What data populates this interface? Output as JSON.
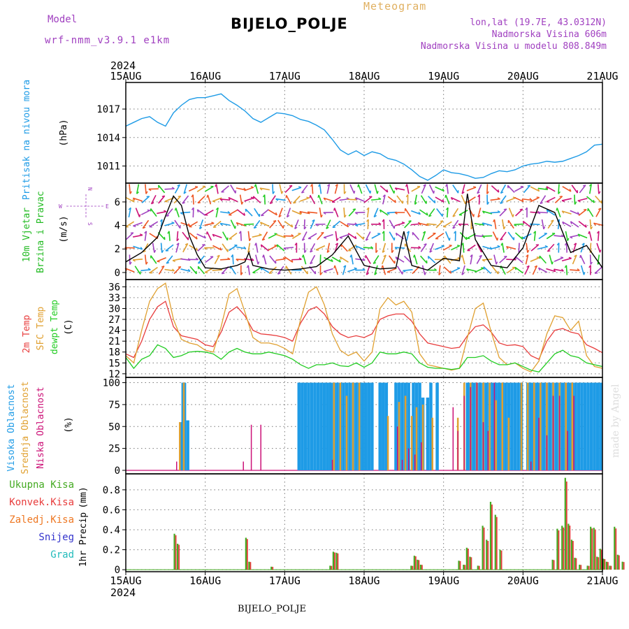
{
  "header": {
    "model_label": "Model",
    "model_name": "wrf-nmm_v3.9.1  e1km",
    "product": "Meteogram",
    "station": "BIJELO_POLJE",
    "lonlat": "lon,lat (19.7E, 43.0312N)",
    "elevation": "Nadmorska Visina 606m",
    "model_elevation": "Nadmorska Visina u modelu 808.849m",
    "footer_station": "BIJELO_POLJE",
    "credit": "made by Angel"
  },
  "time_axis": {
    "year": "2024",
    "dates": [
      "15AUG",
      "16AUG",
      "17AUG",
      "18AUG",
      "19AUG",
      "20AUG",
      "21AUG"
    ]
  },
  "colors": {
    "pressure": "#1e9be6",
    "wind_label": "#22bb22",
    "temp_2m": "#e83c3c",
    "temp_sfc": "#e0a030",
    "dewpoint": "#22cc22",
    "cloud_high": "#1e9be6",
    "cloud_mid": "#e0a030",
    "cloud_low": "#cc1177",
    "precip_total": "#44aa22",
    "precip_conv": "#e83c3c",
    "precip_frz": "#ee7722",
    "snow": "#3333cc",
    "hail": "#22bbbb",
    "header_purple": "#a040c0",
    "meteogram_orange": "#e0b060"
  },
  "chart_data": [
    {
      "type": "line",
      "name": "pressure",
      "ylabel_main": "Pritisak na nivou mora",
      "ylabel_unit": "(hPa)",
      "yticks": [
        1011,
        1014,
        1017
      ],
      "ylim": [
        1009.2,
        1019.8
      ],
      "grid": true,
      "x_days": [
        0,
        0.1,
        0.2,
        0.3,
        0.4,
        0.5,
        0.6,
        0.7,
        0.8,
        0.9,
        1,
        1.1,
        1.2,
        1.3,
        1.4,
        1.5,
        1.6,
        1.7,
        1.8,
        1.9,
        2,
        2.1,
        2.2,
        2.3,
        2.4,
        2.5,
        2.6,
        2.7,
        2.8,
        2.9,
        3,
        3.1,
        3.2,
        3.3,
        3.4,
        3.5,
        3.6,
        3.7,
        3.8,
        3.9,
        4,
        4.1,
        4.2,
        4.3,
        4.4,
        4.5,
        4.6,
        4.7,
        4.8,
        4.9,
        5,
        5.1,
        5.2,
        5.3,
        5.4,
        5.5,
        5.6,
        5.7,
        5.8,
        5.9,
        6
      ],
      "values": [
        1015.2,
        1015.6,
        1016.0,
        1016.2,
        1015.6,
        1015.2,
        1016.6,
        1017.4,
        1018.0,
        1018.2,
        1018.2,
        1018.4,
        1018.6,
        1017.9,
        1017.4,
        1016.8,
        1016.0,
        1015.6,
        1016.1,
        1016.6,
        1016.5,
        1016.3,
        1015.9,
        1015.7,
        1015.3,
        1014.8,
        1013.8,
        1012.7,
        1012.2,
        1012.6,
        1012.1,
        1012.5,
        1012.3,
        1011.8,
        1011.6,
        1011.2,
        1010.6,
        1009.9,
        1009.5,
        1010.0,
        1010.6,
        1010.3,
        1010.2,
        1010.0,
        1009.7,
        1009.8,
        1010.2,
        1010.5,
        1010.4,
        1010.6,
        1011.0,
        1011.2,
        1011.3,
        1011.5,
        1011.4,
        1011.5,
        1011.8,
        1012.1,
        1012.5,
        1013.2,
        1013.3
      ]
    },
    {
      "type": "scatter",
      "name": "wind",
      "ylabel_main": "10m Vjetar",
      "ylabel_sub": "Brzina i Pravac",
      "ylabel_unit": "(m/s)",
      "compass": {
        "w": "W",
        "e": "E",
        "n": "N",
        "s": "S"
      },
      "yticks": [
        0,
        2,
        4,
        6
      ],
      "ylim": [
        -0.6,
        7.6
      ],
      "grid": true,
      "x_days": [
        0,
        0.2,
        0.4,
        0.5,
        0.6,
        0.7,
        0.8,
        0.9,
        1.0,
        1.2,
        1.4,
        1.5,
        1.55,
        1.6,
        1.8,
        2.0,
        2.2,
        2.4,
        2.6,
        2.8,
        3.0,
        3.2,
        3.4,
        3.5,
        3.6,
        3.8,
        4.0,
        4.2,
        4.3,
        4.35,
        4.4,
        4.6,
        4.8,
        5.0,
        5.2,
        5.4,
        5.6,
        5.8,
        6.0
      ],
      "speed": [
        0.9,
        1.7,
        3.0,
        4.8,
        6.5,
        5.7,
        3.1,
        1.5,
        0.4,
        0.3,
        0.6,
        0.9,
        1.7,
        0.6,
        0.3,
        0.2,
        0.3,
        0.5,
        1.5,
        3.1,
        0.6,
        0.3,
        0.4,
        3.5,
        0.6,
        0.2,
        1.2,
        1.0,
        6.7,
        4.6,
        2.8,
        0.6,
        0.4,
        2.1,
        5.7,
        5.1,
        1.7,
        2.3,
        0.4
      ]
    },
    {
      "type": "line",
      "name": "temperature",
      "ylabel_lines": [
        "2m Temp",
        "SFC Temp",
        "dewpt Temp"
      ],
      "ylabel_unit": "(C)",
      "yticks": [
        12,
        15,
        18,
        21,
        24,
        27,
        30,
        33,
        36
      ],
      "ylim": [
        11,
        38
      ],
      "grid": true,
      "x_days": [
        0,
        0.1,
        0.2,
        0.3,
        0.4,
        0.5,
        0.6,
        0.7,
        0.8,
        0.9,
        1,
        1.1,
        1.2,
        1.3,
        1.4,
        1.5,
        1.6,
        1.7,
        1.8,
        1.9,
        2,
        2.1,
        2.2,
        2.3,
        2.4,
        2.5,
        2.6,
        2.7,
        2.8,
        2.9,
        3,
        3.1,
        3.2,
        3.3,
        3.4,
        3.5,
        3.6,
        3.7,
        3.8,
        3.9,
        4,
        4.1,
        4.2,
        4.3,
        4.4,
        4.5,
        4.6,
        4.7,
        4.8,
        4.9,
        5,
        5.1,
        5.2,
        5.3,
        5.4,
        5.5,
        5.6,
        5.7,
        5.8,
        5.9,
        6
      ],
      "series": [
        {
          "name": "2m Temp",
          "values": [
            17.5,
            16.5,
            21.0,
            27.0,
            30.5,
            32.0,
            25.0,
            22.5,
            22.0,
            21.5,
            20.0,
            19.5,
            23.5,
            29.0,
            30.5,
            28.0,
            24.0,
            23.0,
            22.8,
            22.5,
            22.0,
            21.0,
            26.0,
            29.5,
            30.5,
            28.5,
            25.0,
            23.0,
            22.0,
            22.5,
            22.0,
            23.0,
            27.0,
            28.0,
            28.5,
            28.5,
            26.5,
            23.0,
            20.5,
            20.0,
            19.5,
            19.0,
            19.3,
            22.5,
            25.0,
            25.5,
            23.5,
            20.5,
            19.8,
            20.0,
            19.5,
            17.0,
            16.0,
            21.0,
            24.0,
            24.5,
            23.5,
            23.0,
            20.0,
            19.0,
            17.8
          ]
        },
        {
          "name": "SFC Temp",
          "values": [
            17.0,
            15.0,
            24.0,
            32.0,
            35.5,
            37.0,
            27.0,
            21.5,
            20.5,
            20.0,
            18.5,
            18.0,
            25.0,
            34.0,
            35.5,
            29.0,
            22.0,
            20.5,
            20.5,
            20.0,
            19.0,
            17.5,
            27.0,
            34.5,
            36.0,
            31.0,
            23.0,
            18.5,
            17.0,
            18.0,
            15.5,
            18.0,
            30.0,
            33.0,
            31.0,
            32.0,
            29.0,
            17.5,
            14.5,
            14.0,
            13.5,
            13.0,
            13.5,
            22.0,
            30.0,
            31.5,
            23.5,
            16.5,
            14.5,
            15.0,
            13.5,
            12.5,
            15.5,
            23.0,
            28.0,
            27.5,
            24.0,
            26.5,
            17.0,
            14.0,
            13.5
          ]
        },
        {
          "name": "dewpt Temp",
          "values": [
            16.5,
            13.5,
            16.0,
            17.0,
            20.0,
            19.0,
            16.5,
            17.0,
            18.0,
            18.2,
            18.0,
            17.5,
            16.0,
            18.0,
            19.0,
            18.0,
            17.5,
            17.5,
            18.0,
            17.5,
            17.0,
            16.0,
            14.5,
            13.5,
            14.5,
            14.5,
            15.0,
            14.2,
            14.0,
            15.0,
            13.8,
            15.0,
            18.0,
            17.5,
            17.5,
            18.0,
            17.5,
            15.0,
            13.8,
            13.5,
            13.5,
            13.2,
            13.5,
            16.5,
            16.5,
            17.0,
            15.5,
            14.5,
            14.5,
            15.0,
            14.0,
            13.0,
            12.5,
            15.0,
            17.5,
            18.5,
            17.0,
            16.5,
            15.0,
            14.5,
            14.0
          ]
        }
      ]
    },
    {
      "type": "bar",
      "name": "cloud_cover",
      "ylabel_lines": [
        "Visoka Oblacnost",
        "Srednja Oblacnost",
        "Niska Oblacnost"
      ],
      "ylabel_unit": "(%)",
      "yticks": [
        0,
        25,
        50,
        75,
        100
      ],
      "ylim": [
        -4,
        106
      ],
      "grid": true,
      "series": [
        {
          "name": "Visoka Oblacnost",
          "x_days": [
            0.7,
            0.72,
            0.74,
            0.78,
            2.18,
            2.22,
            2.26,
            2.3,
            2.34,
            2.38,
            2.42,
            2.46,
            2.5,
            2.54,
            2.58,
            2.62,
            2.66,
            2.7,
            2.74,
            2.78,
            2.82,
            2.86,
            2.9,
            2.94,
            2.98,
            3.02,
            3.06,
            3.1,
            3.2,
            3.24,
            3.28,
            3.4,
            3.44,
            3.48,
            3.52,
            3.56,
            3.62,
            3.66,
            3.7,
            3.74,
            3.8,
            3.84,
            3.92,
            4.3,
            4.34,
            4.38,
            4.42,
            4.46,
            4.5,
            4.54,
            4.58,
            4.62,
            4.66,
            4.7,
            4.74,
            4.78,
            4.82,
            4.86,
            4.9,
            4.94,
            4.98,
            5.06,
            5.1,
            5.14,
            5.18,
            5.22,
            5.26,
            5.3,
            5.34,
            5.38,
            5.42,
            5.46,
            5.5,
            5.54,
            5.58,
            5.62,
            5.66,
            5.7,
            5.74,
            5.78,
            5.82,
            5.86,
            5.9,
            5.94,
            5.98
          ],
          "values": [
            55,
            100,
            100,
            57,
            100,
            100,
            100,
            100,
            100,
            100,
            100,
            100,
            100,
            100,
            100,
            100,
            100,
            100,
            100,
            100,
            100,
            100,
            100,
            100,
            100,
            100,
            100,
            100,
            100,
            100,
            100,
            100,
            100,
            100,
            100,
            100,
            100,
            100,
            100,
            83,
            83,
            100,
            100,
            100,
            100,
            100,
            100,
            100,
            100,
            100,
            100,
            100,
            100,
            100,
            100,
            100,
            100,
            100,
            100,
            100,
            100,
            100,
            100,
            100,
            100,
            100,
            100,
            100,
            100,
            100,
            100,
            100,
            100,
            100,
            100,
            100,
            100,
            100,
            100,
            100,
            100,
            100,
            100,
            100,
            100
          ]
        },
        {
          "name": "Srednja Oblacnost",
          "x_days": [
            0.68,
            0.73,
            2.62,
            2.7,
            2.78,
            2.86,
            2.94,
            3.3,
            3.44,
            3.52,
            3.6,
            3.66,
            3.74,
            3.86,
            4.18,
            4.26,
            4.34,
            4.42,
            4.5,
            4.58,
            4.66,
            4.74,
            4.82,
            4.98,
            5.06,
            5.14,
            5.22,
            5.3,
            5.38,
            5.46,
            5.54,
            5.62
          ],
          "values": [
            55,
            100,
            100,
            100,
            85,
            100,
            100,
            62,
            78,
            85,
            62,
            72,
            75,
            60,
            60,
            100,
            100,
            100,
            100,
            100,
            80,
            100,
            60,
            100,
            100,
            100,
            100,
            100,
            100,
            100,
            100,
            100
          ]
        },
        {
          "name": "Niska Oblacnost",
          "x_days": [
            0.64,
            1.48,
            1.58,
            1.7,
            2.6,
            3.42,
            3.48,
            3.56,
            3.64,
            3.72,
            4.12,
            4.18,
            4.26,
            4.34,
            4.42,
            4.5,
            4.56,
            4.64,
            5.1,
            5.2,
            5.3,
            5.38,
            5.46,
            5.56,
            5.64
          ],
          "values": [
            10,
            10,
            52,
            52,
            12,
            50,
            12,
            25,
            18,
            32,
            72,
            45,
            85,
            95,
            100,
            55,
            45,
            100,
            10,
            60,
            40,
            85,
            85,
            45,
            85
          ]
        }
      ]
    },
    {
      "type": "bar",
      "name": "precipitation",
      "ylabel_main": "1hr Precip",
      "ylabel_unit": "(mm)",
      "legend": [
        "Ukupna Kisa",
        "Konvek.Kisa",
        "Zaledj.Kisa",
        "Snijeg",
        "Grad"
      ],
      "yticks": [
        0,
        0.2,
        0.4,
        0.6,
        0.8
      ],
      "ylim": [
        -0.02,
        0.96
      ],
      "grid": true,
      "x_days": [
        0.62,
        0.66,
        1.52,
        1.56,
        1.84,
        2.58,
        2.62,
        2.66,
        3.6,
        3.64,
        3.68,
        3.72,
        4.2,
        4.26,
        4.3,
        4.34,
        4.44,
        4.5,
        4.55,
        4.6,
        4.66,
        4.72,
        5.38,
        5.44,
        5.5,
        5.54,
        5.58,
        5.62,
        5.66,
        5.72,
        5.82,
        5.86,
        5.9,
        5.94,
        5.98,
        6.02,
        6.06,
        6.1,
        6.16,
        6.2,
        6.26
      ],
      "values": [
        0.36,
        0.26,
        0.32,
        0.08,
        0.03,
        0.04,
        0.18,
        0.17,
        0.04,
        0.14,
        0.1,
        0.05,
        0.09,
        0.05,
        0.22,
        0.13,
        0.04,
        0.44,
        0.3,
        0.68,
        0.55,
        0.2,
        0.1,
        0.41,
        0.44,
        0.92,
        0.46,
        0.3,
        0.12,
        0.05,
        0.04,
        0.43,
        0.42,
        0.13,
        0.21,
        0.11,
        0.08,
        0.04,
        0.43,
        0.15,
        0.08
      ]
    }
  ]
}
